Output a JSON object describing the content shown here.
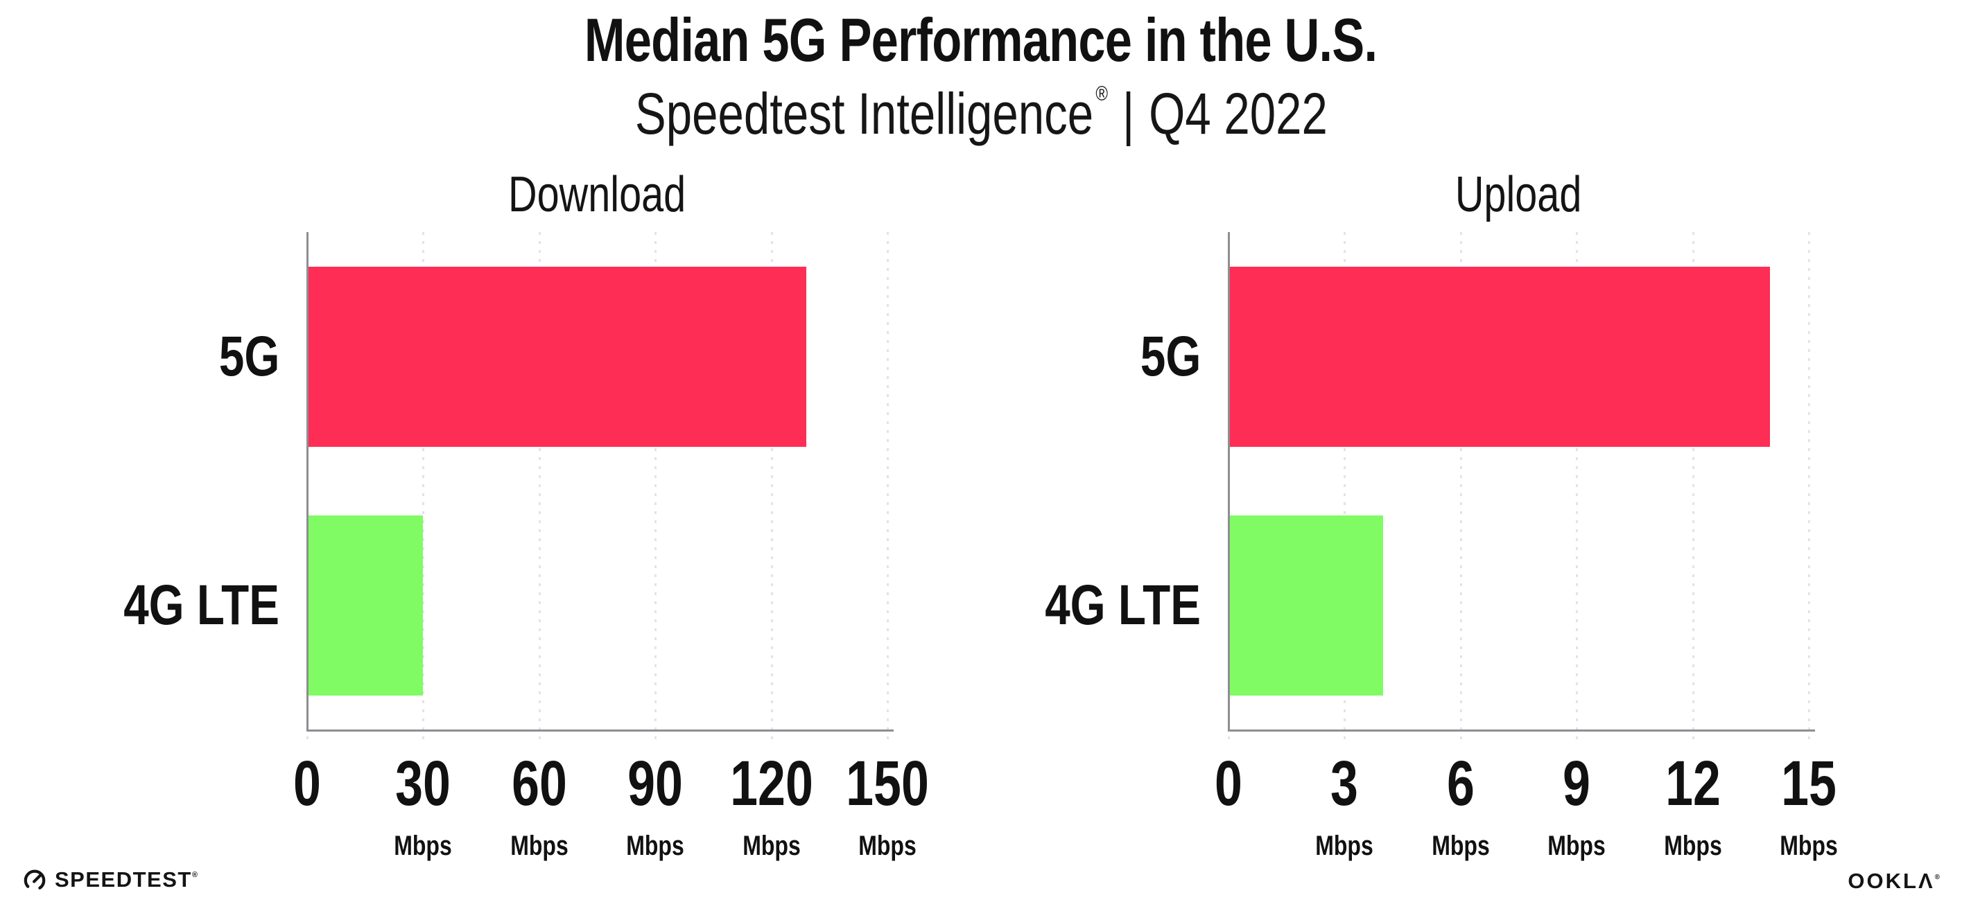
{
  "header": {
    "title": "Median 5G Performance in the U.S.",
    "subtitle": {
      "brand": "Speedtest Intelligence",
      "registered_mark": "®",
      "separator": "|",
      "period": "Q4 2022"
    }
  },
  "chart_data": [
    {
      "type": "bar",
      "orientation": "horizontal",
      "title": "Download",
      "categories": [
        "5G",
        "4G LTE"
      ],
      "values": [
        129,
        30
      ],
      "unit": "Mbps",
      "xlim": [
        0,
        150
      ],
      "xticks": [
        0,
        30,
        60,
        90,
        120,
        150
      ],
      "bar_colors": [
        "#FD2D55",
        "#80FB64"
      ],
      "grid": "dotted-vertical",
      "legend": "none"
    },
    {
      "type": "bar",
      "orientation": "horizontal",
      "title": "Upload",
      "categories": [
        "5G",
        "4G LTE"
      ],
      "values": [
        14,
        4
      ],
      "unit": "Mbps",
      "xlim": [
        0,
        15
      ],
      "xticks": [
        0,
        3,
        6,
        9,
        12,
        15
      ],
      "bar_colors": [
        "#FD2D55",
        "#80FB64"
      ],
      "grid": "dotted-vertical",
      "legend": "none"
    }
  ],
  "colors": {
    "bar_5g": "#FD2D55",
    "bar_4g_lte": "#80FB64",
    "axis": "#8E8E92",
    "gridline": "#E2E2EE",
    "text": "#111111",
    "background": "#FFFFFF"
  },
  "footer": {
    "speedtest_label": "SPEEDTEST",
    "speedtest_trademark": "®",
    "speedtest_icon": "speedtest-gauge-icon",
    "ookla_label": "OOKLΛ",
    "ookla_trademark": "®"
  }
}
